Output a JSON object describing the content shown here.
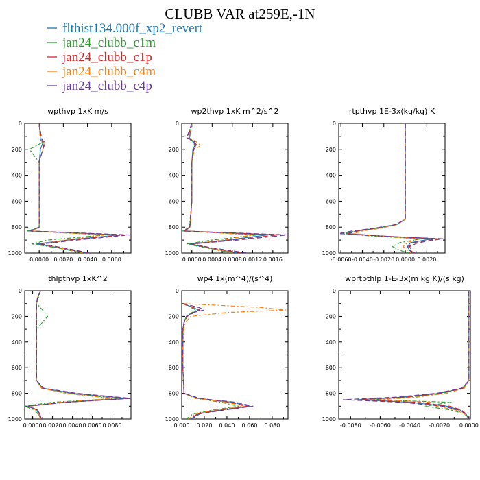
{
  "title": "CLUBB VAR at259E,-1N",
  "legend": [
    {
      "label": "flthist134.000f_xp2_revert",
      "color": "#1f77b4",
      "dash": ""
    },
    {
      "label": "jan24_clubb_c1m",
      "color": "#2ca02c",
      "dash": "6,3,2,3"
    },
    {
      "label": "jan24_clubb_c1p",
      "color": "#d62728",
      "dash": "7,4"
    },
    {
      "label": "jan24_clubb_c4m",
      "color": "#ff7f0e",
      "dash": "6,3,2,3"
    },
    {
      "label": "jan24_clubb_c4p",
      "color": "#6a3d9a",
      "dash": "7,4"
    }
  ],
  "chart_data": [
    {
      "type": "line",
      "title": "wpthvp  1xK m/s",
      "xlim": [
        -0.0012,
        0.0076
      ],
      "ylim": [
        1000,
        0
      ],
      "xticks": [
        0.0,
        0.002,
        0.004,
        0.006
      ],
      "xtick_labels": [
        "0.0000",
        "0.0020",
        "0.0040",
        "0.0060"
      ],
      "yticks": [
        0,
        200,
        400,
        600,
        800,
        1000
      ],
      "y": [
        0,
        120,
        150,
        200,
        300,
        500,
        700,
        800,
        830,
        860,
        900,
        930,
        960,
        1000
      ],
      "series": [
        {
          "x": [
            0.0,
            0.0001,
            0.0003,
            0.0001,
            0.0,
            0.0,
            0.0,
            0.0,
            -0.0008,
            0.0066,
            0.0023,
            -0.0002,
            0.0016,
            0.0039
          ]
        },
        {
          "x": [
            0.0,
            0.0001,
            0.0002,
            -0.0008,
            0.0,
            0.0,
            0.0,
            0.0,
            -0.001,
            0.0055,
            0.0007,
            -0.0006,
            0.0015,
            0.0036
          ]
        },
        {
          "x": [
            0.0,
            0.0002,
            0.0004,
            0.0003,
            0.0,
            0.0,
            0.0,
            0.0,
            -0.0007,
            0.007,
            0.0025,
            0.0,
            0.0018,
            0.004
          ]
        },
        {
          "x": [
            0.0,
            0.0001,
            0.0004,
            0.0003,
            0.0,
            0.0,
            0.0,
            0.0,
            -0.0006,
            0.0054,
            0.0021,
            0.0002,
            0.0017,
            0.0037
          ]
        },
        {
          "x": [
            0.0,
            0.0002,
            0.0005,
            0.0003,
            0.0,
            0.0,
            0.0,
            0.0,
            -0.0007,
            0.0075,
            0.0031,
            0.0002,
            0.002,
            0.0042
          ]
        }
      ]
    },
    {
      "type": "line",
      "title": "wp2thvp  1xK m^2/s^2",
      "xlim": [
        -0.0002,
        0.0019
      ],
      "ylim": [
        1000,
        0
      ],
      "xticks": [
        0.0,
        0.0004,
        0.0008,
        0.0012,
        0.0016
      ],
      "xtick_labels": [
        "0.0000",
        "0.0004",
        "0.0008",
        "0.0012",
        "0.0016"
      ],
      "yticks": [
        0,
        200,
        400,
        600,
        800,
        1000
      ],
      "y": [
        0,
        110,
        140,
        170,
        200,
        300,
        600,
        800,
        830,
        860,
        900,
        930,
        960,
        1000
      ],
      "series": [
        {
          "x": [
            0.0,
            -5e-05,
            3e-05,
            6e-05,
            2e-05,
            0.0,
            0.0,
            -4e-05,
            -0.00015,
            0.0015,
            0.0007,
            -5e-05,
            0.0003,
            0.0009
          ]
        },
        {
          "x": [
            0.0,
            -0.0001,
            2e-05,
            5e-05,
            3e-05,
            0.0,
            0.0,
            -5e-05,
            -0.00018,
            0.0013,
            0.0004,
            -0.0001,
            0.00028,
            0.0008
          ]
        },
        {
          "x": [
            0.0,
            -8e-05,
            4e-05,
            8e-05,
            3e-05,
            0.0,
            0.0,
            -4e-05,
            -0.00014,
            0.0017,
            0.0008,
            0.0,
            0.00035,
            0.001
          ]
        },
        {
          "x": [
            0.0,
            -4e-05,
            8e-05,
            0.00018,
            5e-05,
            0.0,
            0.0,
            -3e-05,
            -0.00013,
            0.0012,
            0.0006,
            5e-05,
            0.00032,
            0.00085
          ]
        },
        {
          "x": [
            0.0,
            -0.0001,
            5e-05,
            0.0001,
            4e-05,
            0.0,
            0.0,
            -4e-05,
            -0.00016,
            0.0019,
            0.0009,
            0.0,
            0.0004,
            0.0011
          ]
        }
      ]
    },
    {
      "type": "line",
      "title": "rtpthvp  1E-3x(kg/kg) K",
      "xlim": [
        -0.0062,
        0.0037
      ],
      "ylim": [
        1000,
        0
      ],
      "xticks": [
        -0.006,
        -0.004,
        -0.002,
        0.0,
        0.002
      ],
      "xtick_labels": [
        "-0.0060",
        "-0.0040",
        "-0.0020",
        "0.0000",
        "0.0020"
      ],
      "yticks": [
        0,
        200,
        400,
        600,
        800,
        1000
      ],
      "y": [
        0,
        300,
        600,
        740,
        780,
        810,
        830,
        850,
        870,
        890,
        920,
        950,
        980,
        1000
      ],
      "series": [
        {
          "x": [
            0.0,
            0.0,
            0.0,
            0.0,
            -0.0008,
            -0.0028,
            -0.0045,
            -0.0055,
            -0.002,
            0.0025,
            0.0005,
            0.0002,
            0.0004,
            0.0007
          ]
        },
        {
          "x": [
            0.0,
            0.0,
            0.0,
            0.0,
            -0.0009,
            -0.003,
            -0.0048,
            -0.0058,
            -0.003,
            0.0015,
            -0.0005,
            -0.0012,
            -0.0005,
            0.0003
          ]
        },
        {
          "x": [
            0.0,
            0.0,
            0.0,
            0.0,
            -0.0008,
            -0.0027,
            -0.0044,
            -0.0053,
            -0.0018,
            0.003,
            0.0008,
            0.0003,
            0.0005,
            0.0008
          ]
        },
        {
          "x": [
            0.0,
            0.0,
            0.0,
            0.0,
            -0.0007,
            -0.0024,
            -0.004,
            -0.0048,
            -0.0022,
            0.0012,
            0.0002,
            -0.0002,
            0.0002,
            0.0005
          ]
        },
        {
          "x": [
            0.0,
            0.0,
            0.0,
            0.0,
            -0.0009,
            -0.003,
            -0.005,
            -0.0062,
            -0.002,
            0.0035,
            0.0012,
            0.0004,
            0.0006,
            0.0009
          ]
        }
      ]
    },
    {
      "type": "line",
      "title": "thlpthvp  1xK^2",
      "xlim": [
        -0.0008,
        0.0099
      ],
      "ylim": [
        1000,
        0
      ],
      "xticks": [
        0.0,
        0.002,
        0.004,
        0.006,
        0.008
      ],
      "xtick_labels": [
        "0.0000",
        "0.0020",
        "0.0040",
        "0.0060",
        "0.0080"
      ],
      "yticks": [
        0,
        200,
        400,
        600,
        800,
        1000
      ],
      "y": [
        0,
        50,
        100,
        150,
        200,
        300,
        500,
        700,
        760,
        800,
        840,
        870,
        900,
        930,
        960,
        1000
      ],
      "series": [
        {
          "x": [
            0.0008,
            0.0005,
            0.0004,
            0.0004,
            0.0004,
            0.0004,
            0.0004,
            0.0004,
            0.001,
            0.004,
            0.0095,
            0.003,
            -0.0005,
            0.0004,
            0.0006,
            0.0008
          ]
        },
        {
          "x": [
            0.0008,
            0.0006,
            0.0004,
            0.001,
            0.0015,
            0.0004,
            0.0004,
            0.0004,
            0.0009,
            0.0035,
            0.0085,
            0.002,
            -0.0008,
            0.0002,
            0.0005,
            0.0009
          ]
        },
        {
          "x": [
            0.0008,
            0.0005,
            0.0004,
            0.0004,
            0.0004,
            0.0004,
            0.0004,
            0.0004,
            0.001,
            0.0042,
            0.0098,
            0.0032,
            -0.0004,
            0.0005,
            0.0007,
            0.0009
          ]
        },
        {
          "x": [
            0.0008,
            0.0005,
            0.0004,
            0.0004,
            0.0004,
            0.0004,
            0.0004,
            0.0004,
            0.0009,
            0.0033,
            0.008,
            0.0028,
            -0.0003,
            0.0004,
            0.0006,
            0.0008
          ]
        },
        {
          "x": [
            0.0008,
            0.0005,
            0.0004,
            0.0004,
            0.0004,
            0.0004,
            0.0004,
            0.0004,
            0.0011,
            0.0045,
            0.0099,
            0.0034,
            -0.0005,
            0.0005,
            0.0007,
            0.0009
          ]
        }
      ]
    },
    {
      "type": "line",
      "title": "wp4  1x(m^4)/(s^4)",
      "xlim": [
        0.0,
        0.094
      ],
      "ylim": [
        1000,
        0
      ],
      "xticks": [
        0.0,
        0.02,
        0.04,
        0.06,
        0.08
      ],
      "xtick_labels": [
        "0.000",
        "0.020",
        "0.040",
        "0.060",
        "0.080"
      ],
      "yticks": [
        0,
        200,
        400,
        600,
        800,
        1000
      ],
      "y": [
        100,
        130,
        150,
        170,
        200,
        250,
        300,
        400,
        600,
        800,
        840,
        870,
        900,
        930,
        960,
        1000
      ],
      "series": [
        {
          "x": [
            0.001,
            0.01,
            0.015,
            0.01,
            0.004,
            0.002,
            0.001,
            0.001,
            0.001,
            0.002,
            0.015,
            0.045,
            0.06,
            0.035,
            0.015,
            0.008
          ]
        },
        {
          "x": [
            0.001,
            0.008,
            0.013,
            0.009,
            0.004,
            0.002,
            0.001,
            0.001,
            0.001,
            0.002,
            0.012,
            0.035,
            0.05,
            0.028,
            0.01,
            0.004
          ]
        },
        {
          "x": [
            0.001,
            0.01,
            0.016,
            0.011,
            0.005,
            0.002,
            0.001,
            0.001,
            0.001,
            0.002,
            0.014,
            0.042,
            0.058,
            0.033,
            0.014,
            0.007
          ]
        },
        {
          "x": [
            0.001,
            0.07,
            0.092,
            0.04,
            0.008,
            0.003,
            0.002,
            0.001,
            0.001,
            0.002,
            0.013,
            0.04,
            0.055,
            0.03,
            0.012,
            0.006
          ]
        },
        {
          "x": [
            0.001,
            0.015,
            0.02,
            0.01,
            0.004,
            0.002,
            0.001,
            0.001,
            0.001,
            0.002,
            0.016,
            0.048,
            0.063,
            0.038,
            0.016,
            0.009
          ]
        }
      ]
    },
    {
      "type": "line",
      "title": "wprtpthlp  1-E-3x(m kg K)/(s kg)",
      "xlim": [
        -0.0088,
        0.0001
      ],
      "ylim": [
        1000,
        0
      ],
      "xticks": [
        -0.008,
        -0.006,
        -0.004,
        -0.002,
        0.0
      ],
      "xtick_labels": [
        "-0.0080",
        "-0.0060",
        "-0.0040",
        "-0.0020",
        "0.0000"
      ],
      "yticks": [
        0,
        200,
        400,
        600,
        800,
        1000
      ],
      "y": [
        0,
        300,
        600,
        700,
        760,
        800,
        830,
        850,
        870,
        900,
        930,
        960,
        1000
      ],
      "series": [
        {
          "x": [
            0.0,
            0.0,
            0.0,
            0.0,
            -0.0004,
            -0.002,
            -0.0045,
            -0.0075,
            -0.004,
            -0.0015,
            -0.0006,
            -0.0002,
            0.0
          ]
        },
        {
          "x": [
            0.0,
            0.0,
            0.0,
            0.0,
            -0.0004,
            -0.0018,
            -0.004,
            -0.0065,
            -0.0012,
            -0.003,
            -0.0012,
            -0.0003,
            0.0
          ]
        },
        {
          "x": [
            0.0,
            0.0,
            0.0,
            0.0,
            -0.0004,
            -0.0019,
            -0.0043,
            -0.0072,
            -0.0035,
            -0.0013,
            -0.0005,
            -0.0002,
            0.0
          ]
        },
        {
          "x": [
            0.0,
            0.0,
            0.0,
            0.0,
            -0.0003,
            -0.0015,
            -0.0035,
            -0.006,
            -0.0025,
            -0.0022,
            -0.0009,
            -0.0003,
            0.0
          ]
        },
        {
          "x": [
            0.0,
            0.0,
            0.0,
            0.0,
            -0.0005,
            -0.0022,
            -0.005,
            -0.0085,
            -0.0045,
            -0.0018,
            -0.0007,
            -0.0002,
            0.0
          ]
        }
      ]
    }
  ]
}
